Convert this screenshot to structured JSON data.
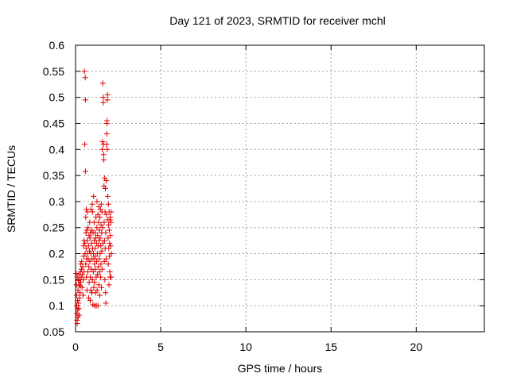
{
  "chart_data": {
    "type": "scatter",
    "title": "Day 121 of 2023, SRMTID for receiver mchl",
    "xlabel": "GPS time / hours",
    "ylabel": "SRMTID / TECUs",
    "xlim": [
      0,
      24
    ],
    "ylim": [
      0.05,
      0.6
    ],
    "x_ticks": [
      0,
      5,
      10,
      15,
      20
    ],
    "y_ticks": [
      0.05,
      0.1,
      0.15,
      0.2,
      0.25,
      0.3,
      0.35,
      0.4,
      0.45,
      0.5,
      0.55,
      0.6
    ],
    "x_tick_labels": [
      "0",
      "5",
      "10",
      "15",
      "20"
    ],
    "y_tick_labels": [
      "0.05",
      "0.1",
      "0.15",
      "0.2",
      "0.25",
      "0.3",
      "0.35",
      "0.4",
      "0.45",
      "0.5",
      "0.55",
      "0.6"
    ],
    "grid": true,
    "marker": "+",
    "series": [
      {
        "name": "mchl",
        "color": "#e00000",
        "points": [
          [
            0.03,
            0.162
          ],
          [
            0.05,
            0.14
          ],
          [
            0.06,
            0.12
          ],
          [
            0.07,
            0.1
          ],
          [
            0.08,
            0.085
          ],
          [
            0.09,
            0.072
          ],
          [
            0.1,
            0.066
          ],
          [
            0.1,
            0.155
          ],
          [
            0.12,
            0.11
          ],
          [
            0.13,
            0.092
          ],
          [
            0.14,
            0.13
          ],
          [
            0.15,
            0.078
          ],
          [
            0.16,
            0.148
          ],
          [
            0.17,
            0.105
          ],
          [
            0.18,
            0.095
          ],
          [
            0.2,
            0.16
          ],
          [
            0.21,
            0.082
          ],
          [
            0.22,
            0.14
          ],
          [
            0.23,
            0.115
          ],
          [
            0.25,
            0.15
          ],
          [
            0.26,
            0.125
          ],
          [
            0.27,
            0.138
          ],
          [
            0.29,
            0.165
          ],
          [
            0.3,
            0.145
          ],
          [
            0.31,
            0.18
          ],
          [
            0.33,
            0.155
          ],
          [
            0.35,
            0.17
          ],
          [
            0.36,
            0.185
          ],
          [
            0.38,
            0.135
          ],
          [
            0.4,
            0.16
          ],
          [
            0.42,
            0.175
          ],
          [
            0.44,
            0.12
          ],
          [
            0.45,
            0.15
          ],
          [
            0.47,
            0.195
          ],
          [
            0.48,
            0.215
          ],
          [
            0.5,
            0.225
          ],
          [
            0.5,
            0.165
          ],
          [
            0.52,
            0.55
          ],
          [
            0.54,
            0.41
          ],
          [
            0.55,
            0.22
          ],
          [
            0.56,
            0.2
          ],
          [
            0.57,
            0.538
          ],
          [
            0.58,
            0.495
          ],
          [
            0.58,
            0.358
          ],
          [
            0.6,
            0.18
          ],
          [
            0.6,
            0.27
          ],
          [
            0.61,
            0.24
          ],
          [
            0.62,
            0.21
          ],
          [
            0.63,
            0.285
          ],
          [
            0.64,
            0.155
          ],
          [
            0.65,
            0.19
          ],
          [
            0.66,
            0.245
          ],
          [
            0.67,
            0.13
          ],
          [
            0.68,
            0.225
          ],
          [
            0.7,
            0.2
          ],
          [
            0.7,
            0.28
          ],
          [
            0.72,
            0.165
          ],
          [
            0.73,
            0.25
          ],
          [
            0.75,
            0.19
          ],
          [
            0.76,
            0.215
          ],
          [
            0.77,
            0.115
          ],
          [
            0.78,
            0.175
          ],
          [
            0.79,
            0.235
          ],
          [
            0.8,
            0.145
          ],
          [
            0.82,
            0.205
          ],
          [
            0.83,
            0.26
          ],
          [
            0.84,
            0.185
          ],
          [
            0.85,
            0.23
          ],
          [
            0.86,
            0.11
          ],
          [
            0.87,
            0.155
          ],
          [
            0.88,
            0.24
          ],
          [
            0.9,
            0.2
          ],
          [
            0.9,
            0.13
          ],
          [
            0.91,
            0.285
          ],
          [
            0.92,
            0.17
          ],
          [
            0.94,
            0.22
          ],
          [
            0.95,
            0.245
          ],
          [
            0.96,
            0.125
          ],
          [
            0.97,
            0.19
          ],
          [
            0.98,
            0.295
          ],
          [
            0.99,
            0.15
          ],
          [
            1.0,
            0.21
          ],
          [
            1.0,
            0.28
          ],
          [
            1.02,
            0.102
          ],
          [
            1.03,
            0.24
          ],
          [
            1.04,
            0.165
          ],
          [
            1.05,
            0.2
          ],
          [
            1.06,
            0.31
          ],
          [
            1.07,
            0.135
          ],
          [
            1.08,
            0.19
          ],
          [
            1.09,
            0.26
          ],
          [
            1.1,
            0.225
          ],
          [
            1.11,
            0.145
          ],
          [
            1.12,
            0.18
          ],
          [
            1.13,
            0.1
          ],
          [
            1.14,
            0.21
          ],
          [
            1.15,
            0.24
          ],
          [
            1.16,
            0.17
          ],
          [
            1.17,
            0.195
          ],
          [
            1.18,
            0.125
          ],
          [
            1.19,
            0.23
          ],
          [
            1.2,
            0.27
          ],
          [
            1.21,
            0.155
          ],
          [
            1.22,
            0.1
          ],
          [
            1.23,
            0.22
          ],
          [
            1.24,
            0.185
          ],
          [
            1.25,
            0.25
          ],
          [
            1.26,
            0.3
          ],
          [
            1.27,
            0.13
          ],
          [
            1.28,
            0.2
          ],
          [
            1.29,
            0.16
          ],
          [
            1.3,
            0.235
          ],
          [
            1.31,
            0.275
          ],
          [
            1.32,
            0.1
          ],
          [
            1.33,
            0.215
          ],
          [
            1.34,
            0.175
          ],
          [
            1.35,
            0.26
          ],
          [
            1.36,
            0.14
          ],
          [
            1.37,
            0.29
          ],
          [
            1.38,
            0.225
          ],
          [
            1.39,
            0.19
          ],
          [
            1.4,
            0.245
          ],
          [
            1.41,
            0.165
          ],
          [
            1.42,
            0.12
          ],
          [
            1.43,
            0.27
          ],
          [
            1.44,
            0.2
          ],
          [
            1.45,
            0.23
          ],
          [
            1.46,
            0.285
          ],
          [
            1.47,
            0.155
          ],
          [
            1.48,
            0.215
          ],
          [
            1.49,
            0.18
          ],
          [
            1.5,
            0.255
          ],
          [
            1.51,
            0.295
          ],
          [
            1.52,
            0.135
          ],
          [
            1.53,
            0.24
          ],
          [
            1.54,
            0.205
          ],
          [
            1.55,
            0.28
          ],
          [
            1.56,
            0.17
          ],
          [
            1.57,
            0.4
          ],
          [
            1.58,
            0.415
          ],
          [
            1.59,
            0.25
          ],
          [
            1.6,
            0.527
          ],
          [
            1.61,
            0.22
          ],
          [
            1.62,
            0.5
          ],
          [
            1.63,
            0.49
          ],
          [
            1.64,
            0.41
          ],
          [
            1.65,
            0.39
          ],
          [
            1.66,
            0.38
          ],
          [
            1.67,
            0.33
          ],
          [
            1.68,
            0.26
          ],
          [
            1.69,
            0.185
          ],
          [
            1.7,
            0.225
          ],
          [
            1.71,
            0.345
          ],
          [
            1.72,
            0.15
          ],
          [
            1.73,
            0.28
          ],
          [
            1.74,
            0.21
          ],
          [
            1.75,
            0.325
          ],
          [
            1.76,
            0.125
          ],
          [
            1.77,
            0.24
          ],
          [
            1.78,
            0.105
          ],
          [
            1.79,
            0.19
          ],
          [
            1.8,
            0.34
          ],
          [
            1.81,
            0.275
          ],
          [
            1.82,
            0.41
          ],
          [
            1.83,
            0.43
          ],
          [
            1.84,
            0.455
          ],
          [
            1.85,
            0.45
          ],
          [
            1.86,
            0.4
          ],
          [
            1.87,
            0.495
          ],
          [
            1.88,
            0.505
          ],
          [
            1.89,
            0.31
          ],
          [
            1.9,
            0.265
          ],
          [
            1.91,
            0.23
          ],
          [
            1.92,
            0.18
          ],
          [
            1.93,
            0.295
          ],
          [
            1.94,
            0.255
          ],
          [
            1.95,
            0.21
          ],
          [
            1.96,
            0.14
          ],
          [
            1.97,
            0.28
          ],
          [
            1.98,
            0.245
          ],
          [
            1.99,
            0.195
          ],
          [
            2.0,
            0.22
          ],
          [
            2.01,
            0.165
          ],
          [
            2.02,
            0.265
          ],
          [
            2.03,
            0.155
          ],
          [
            2.04,
            0.27
          ],
          [
            2.05,
            0.235
          ],
          [
            2.06,
            0.215
          ],
          [
            2.07,
            0.26
          ],
          [
            2.08,
            0.155
          ],
          [
            2.09,
            0.28
          ],
          [
            2.1,
            0.2
          ]
        ]
      }
    ]
  }
}
